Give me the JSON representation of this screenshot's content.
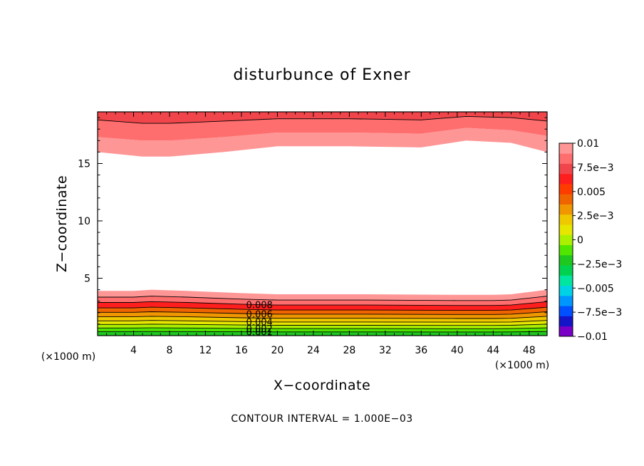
{
  "chart_data": {
    "type": "contour",
    "title": "disturbunce of Exner",
    "xlabel": "X−coordinate",
    "ylabel": "Z−coordinate",
    "x_unit": "(×1000 m)",
    "xlim": [
      0,
      50
    ],
    "ylim": [
      0,
      19.5
    ],
    "xticks": [
      4,
      8,
      12,
      16,
      20,
      24,
      28,
      32,
      36,
      40,
      44,
      48
    ],
    "xtick_labels": [
      "4",
      "8",
      "12",
      "16",
      "20",
      "24",
      "28",
      "32",
      "36",
      "40",
      "44",
      "48"
    ],
    "yticks": [
      5,
      10,
      15
    ],
    "ytick_labels": [
      "5",
      "10",
      "15"
    ],
    "contour_interval_text": "CONTOUR INTERVAL = 1.000E−03",
    "contour_labels": [
      "0.008",
      "0.006",
      "0.004",
      "0.002",
      "0.001"
    ],
    "contour_label_x": 18,
    "colorbar": {
      "range": [
        -0.01,
        0.01
      ],
      "tick_labels": [
        "0.01",
        "7.5e−3",
        "0.005",
        "2.5e−3",
        "0",
        "−2.5e−3",
        "−0.005",
        "−7.5e−3",
        "−0.01"
      ],
      "colors": [
        "#7a00c8",
        "#1414c8",
        "#0050ff",
        "#0096ff",
        "#00d2e6",
        "#00e6a0",
        "#00d250",
        "#1ec81e",
        "#50e600",
        "#aaf000",
        "#e6e600",
        "#f0c800",
        "#f09600",
        "#f06400",
        "#ff3c00",
        "#ff1e1e",
        "#f0464b",
        "#ff6e6e",
        "#ff9696"
      ]
    },
    "bottom_layer": {
      "x": [
        0,
        4,
        6,
        10,
        16,
        20,
        30,
        40,
        44,
        46,
        50
      ],
      "surface_z": [
        3.9,
        3.9,
        4.0,
        3.9,
        3.7,
        3.6,
        3.6,
        3.55,
        3.55,
        3.6,
        4.0
      ],
      "interfaces_z_fraction": [
        0.86,
        0.74,
        0.62,
        0.52,
        0.42,
        0.33,
        0.25,
        0.17,
        0.09
      ],
      "fill_colors": [
        "#ff9696",
        "#ff6e6e",
        "#ff1e1e",
        "#f06400",
        "#f09600",
        "#f0c800",
        "#e6e600",
        "#aaf000",
        "#50e600",
        "#1ec81e"
      ]
    },
    "top_layer": {
      "x": [
        0,
        5,
        8,
        14,
        20,
        28,
        36,
        41,
        46,
        50
      ],
      "lowest_z": [
        16.0,
        15.6,
        15.6,
        16.0,
        16.5,
        16.5,
        16.4,
        17.0,
        16.8,
        16.0
      ],
      "line_z": [
        18.8,
        18.5,
        18.5,
        18.7,
        18.9,
        18.9,
        18.8,
        19.1,
        19.0,
        18.7
      ],
      "mid_z": [
        17.3,
        17.0,
        17.0,
        17.3,
        17.7,
        17.7,
        17.6,
        18.1,
        17.9,
        17.4
      ],
      "fill_colors": [
        "#ff9696",
        "#ff6e6e",
        "#f0464b"
      ]
    }
  }
}
